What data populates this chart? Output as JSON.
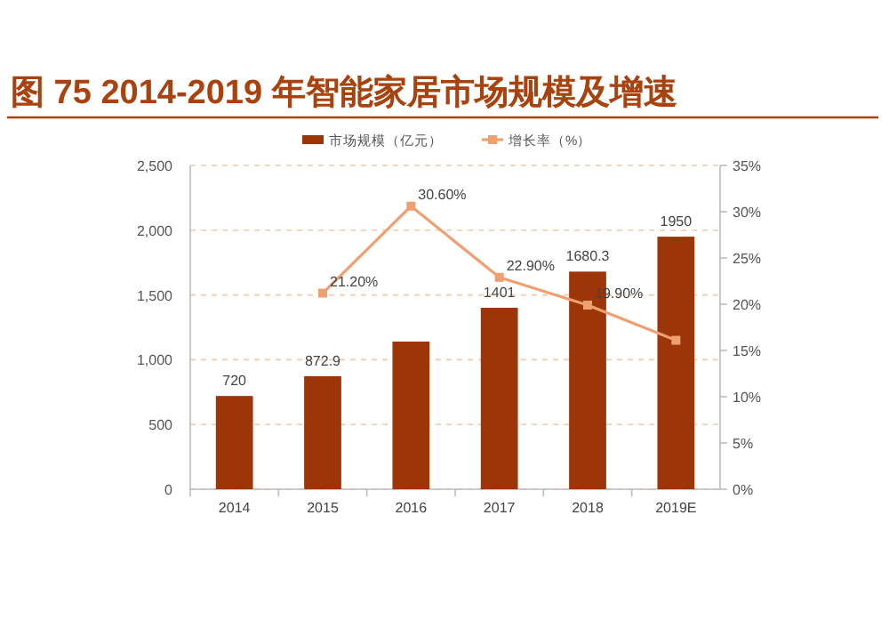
{
  "chart_data": {
    "type": "bar",
    "title": "图 75 2014-2019 年智能家居市场规模及增速",
    "categories": [
      "2014",
      "2015",
      "2016",
      "2017",
      "2018",
      "2019E"
    ],
    "series": [
      {
        "name": "市场规模（亿元）",
        "color": "#9c3608",
        "values": [
          720,
          872.9,
          1140,
          1401,
          1680.3,
          1950
        ],
        "value_labels": [
          "720",
          "872.9",
          null,
          "1401",
          "1680.3",
          "1950"
        ]
      },
      {
        "name": "增长率（%）",
        "type": "line",
        "axis": "y2",
        "color": "#f0a070",
        "marker": "square",
        "values": [
          null,
          21.2,
          30.6,
          22.9,
          19.9,
          16.1
        ],
        "value_labels": [
          null,
          "21.20%",
          "30.60%",
          "22.90%",
          "19.90%",
          null
        ]
      }
    ],
    "ylim": [
      0,
      2500
    ],
    "yticks": [
      {
        "value": 0,
        "label": "0"
      },
      {
        "value": 500,
        "label": "500"
      },
      {
        "value": 1000,
        "label": "1,000"
      },
      {
        "value": 1500,
        "label": "1,500"
      },
      {
        "value": 2000,
        "label": "2,000"
      },
      {
        "value": 2500,
        "label": "2,500"
      }
    ],
    "y2lim": [
      0,
      35
    ],
    "y2ticks": [
      {
        "value": 0,
        "label": "0%"
      },
      {
        "value": 5,
        "label": "5%"
      },
      {
        "value": 10,
        "label": "10%"
      },
      {
        "value": 15,
        "label": "15%"
      },
      {
        "value": 20,
        "label": "20%"
      },
      {
        "value": 25,
        "label": "25%"
      },
      {
        "value": 30,
        "label": "30%"
      },
      {
        "value": 35,
        "label": "35%"
      }
    ],
    "grid": "y",
    "legend": "top"
  }
}
